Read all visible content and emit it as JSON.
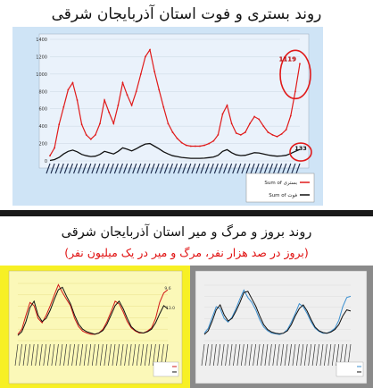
{
  "titles": {
    "top": "روند بستری و فوت استان آذربایجان شرقی",
    "bottom_main": "روند بروز و مرگ و میر استان آذربایجان شرقی",
    "bottom_sub": "(بروز در صد هزار نفر، مرگ و میر در یک میلیون نفر)"
  },
  "colors": {
    "hosp": "#e01a1a",
    "death": "#111111",
    "yellow_bg": "#f7f024",
    "gray_bg": "#8a8a8a",
    "top_bg": "#cfe4f6",
    "blue_line": "#3a8fd0"
  },
  "chart_data": [
    {
      "type": "line",
      "ylim": [
        0,
        1400
      ],
      "yticks": [
        "0",
        "200",
        "400",
        "600",
        "800",
        "1000",
        "1200",
        "1400"
      ],
      "series": [
        {
          "name": "Sum of بستری",
          "color": "#e01a1a",
          "values": [
            60,
            150,
            420,
            620,
            820,
            900,
            700,
            420,
            300,
            250,
            300,
            430,
            700,
            560,
            430,
            640,
            900,
            760,
            640,
            800,
            1000,
            1200,
            1280,
            1030,
            820,
            620,
            430,
            330,
            260,
            210,
            180,
            170,
            170,
            170,
            180,
            200,
            230,
            300,
            540,
            640,
            430,
            320,
            300,
            330,
            430,
            510,
            480,
            400,
            330,
            300,
            280,
            310,
            360,
            520,
            800,
            1119
          ]
        },
        {
          "name": "Sum of فوت",
          "color": "#111111",
          "values": [
            5,
            15,
            40,
            80,
            110,
            125,
            105,
            75,
            60,
            50,
            55,
            75,
            110,
            95,
            80,
            110,
            150,
            135,
            115,
            140,
            170,
            195,
            200,
            170,
            140,
            105,
            80,
            60,
            50,
            40,
            35,
            30,
            30,
            30,
            32,
            38,
            45,
            65,
            110,
            130,
            95,
            70,
            62,
            65,
            80,
            95,
            92,
            80,
            68,
            60,
            55,
            58,
            65,
            85,
            110,
            133
          ]
        }
      ],
      "annotations": [
        "1119",
        "133"
      ]
    },
    {
      "type": "line",
      "series": [
        {
          "values": [
            10,
            18,
            40,
            60,
            55,
            35,
            28,
            40,
            55,
            72,
            88,
            76,
            65,
            55,
            35,
            22,
            15,
            12,
            10,
            10,
            12,
            18,
            30,
            45,
            62,
            58,
            45,
            30,
            20,
            15,
            12,
            12,
            15,
            20,
            35,
            60,
            75,
            80
          ]
        },
        {
          "values": [
            8,
            14,
            30,
            52,
            62,
            40,
            30,
            35,
            48,
            65,
            80,
            84,
            70,
            58,
            40,
            26,
            18,
            14,
            12,
            10,
            12,
            16,
            26,
            40,
            55,
            62,
            50,
            35,
            22,
            16,
            13,
            12,
            14,
            18,
            28,
            42,
            55,
            50
          ]
        }
      ],
      "annotations": [
        "9.6",
        "13.0"
      ]
    },
    {
      "type": "line",
      "series": [
        {
          "values": [
            12,
            20,
            38,
            55,
            52,
            36,
            30,
            38,
            52,
            68,
            82,
            70,
            62,
            50,
            34,
            22,
            16,
            12,
            11,
            10,
            12,
            18,
            30,
            44,
            60,
            55,
            44,
            30,
            20,
            15,
            12,
            12,
            15,
            20,
            33,
            55,
            70,
            72
          ]
        },
        {
          "values": [
            10,
            16,
            32,
            50,
            58,
            42,
            32,
            36,
            48,
            62,
            78,
            80,
            68,
            56,
            40,
            26,
            18,
            14,
            12,
            11,
            12,
            16,
            26,
            40,
            52,
            58,
            48,
            34,
            22,
            16,
            13,
            12,
            14,
            18,
            26,
            40,
            50,
            48
          ]
        }
      ]
    }
  ]
}
